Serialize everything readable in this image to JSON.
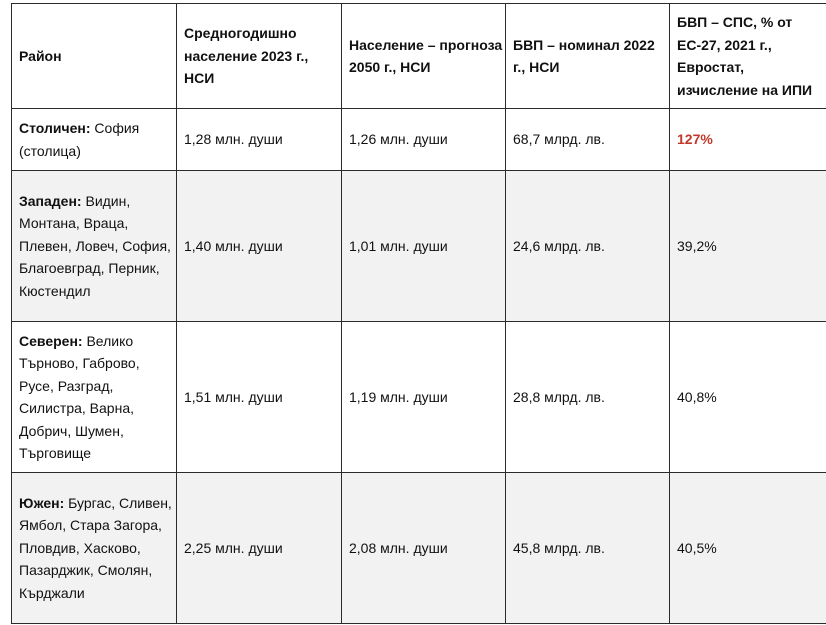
{
  "headers": {
    "region": "Район",
    "population_2023": "Средногодишно население 2023 г., НСИ",
    "population_2050": "Население – прогноза 2050 г., НСИ",
    "gdp_2022": "БВП – номинал 2022 г., НСИ",
    "gdp_pps": "БВП – СПС, % от ЕС-27, 2021 г., Евростат, изчисление на ИПИ"
  },
  "rows": [
    {
      "name": "Столичен:",
      "districts": " София (столица)",
      "population_2023": "1,28 млн. души",
      "population_2050": "1,26 млн. души",
      "gdp_2022": "68,7 млрд. лв.",
      "gdp_pps": "127%"
    },
    {
      "name": "Западен:",
      "districts": " Видин, Монтана, Враца, Плевен, Ловеч, София, Благоевград, Перник, Кюстендил",
      "population_2023": "1,40 млн. души",
      "population_2050": "1,01 млн. души",
      "gdp_2022": "24,6 млрд. лв.",
      "gdp_pps": "39,2%"
    },
    {
      "name": "Северен:",
      "districts": " Велико Търново, Габрово, Русе, Разград, Силистра, Варна, Добрич, Шумен, Търговище",
      "population_2023": "1,51 млн. души",
      "population_2050": "1,19 млн. души",
      "gdp_2022": "28,8 млрд. лв.",
      "gdp_pps": "40,8%"
    },
    {
      "name": "Южен:",
      "districts": " Бургас, Сливен, Ямбол, Стара Загора, Пловдив, Хасково, Пазарджик, Смолян, Кърджали",
      "population_2023": "2,25 млн. души",
      "population_2050": "2,08 млн. души",
      "gdp_2022": "45,8 млрд. лв.",
      "gdp_pps": "40,5%"
    }
  ],
  "colors": {
    "highlight": "#c0392b",
    "stripe": "#f2f2f2",
    "border": "#2b2b2b"
  }
}
